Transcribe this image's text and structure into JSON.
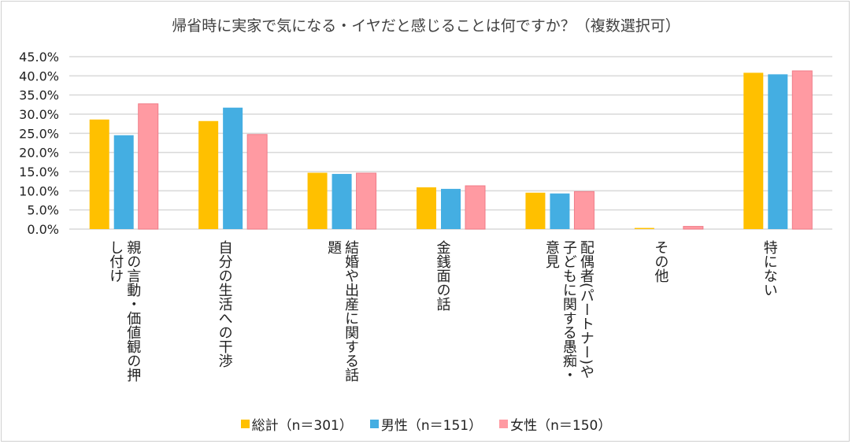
{
  "chart_data": {
    "type": "bar",
    "title": "帰省時に実家で気になる・イヤだと感じることは何ですか？（複数選択可）",
    "categories": [
      "親の言動・価値観の押し付け",
      "自分の生活への干渉",
      "結婚や出産に関する話題",
      "金銭面の話",
      "配偶者(パートナー)や子どもに関する愚痴・意見",
      "その他",
      "特にない"
    ],
    "series": [
      {
        "name": "総計（n＝301）",
        "color": "#FFC000",
        "values": [
          28.6,
          28.2,
          14.7,
          10.9,
          9.5,
          0.3,
          40.8
        ]
      },
      {
        "name": "男性（n＝151）",
        "color": "#44AEE2",
        "values": [
          24.5,
          31.7,
          14.4,
          10.5,
          9.3,
          0.0,
          40.4
        ]
      },
      {
        "name": "女性（n＝150）",
        "color": "#FF9AA2",
        "values": [
          32.7,
          24.7,
          14.6,
          11.3,
          9.8,
          0.7,
          41.3
        ]
      }
    ],
    "ylim": [
      0,
      45
    ],
    "yticks": [
      "0.0%",
      "5.0%",
      "10.0%",
      "15.0%",
      "20.0%",
      "25.0%",
      "30.0%",
      "35.0%",
      "40.0%",
      "45.0%"
    ],
    "grid": true,
    "legend": "bottom"
  }
}
